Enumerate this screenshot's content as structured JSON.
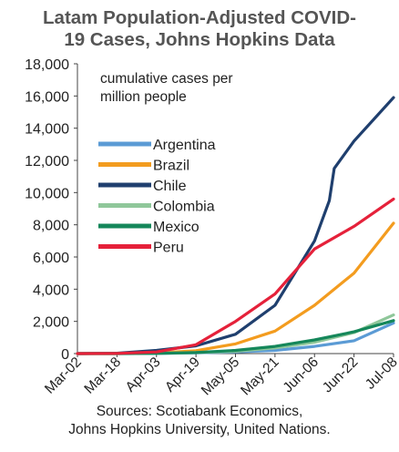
{
  "chart_data": {
    "type": "line",
    "title_lines": [
      "Latam Population-Adjusted  COVID-",
      "19 Cases, Johns Hopkins Data"
    ],
    "annotation_lines": [
      "cumulative cases per",
      "million people"
    ],
    "source_lines": [
      "Sources: Scotiabank Economics,",
      "Johns Hopkins University, United Nations."
    ],
    "x_ticks": [
      "Mar-02",
      "Mar-18",
      "Apr-03",
      "Apr-19",
      "May-05",
      "May-21",
      "Jun-06",
      "Jun-22",
      "Jul-08"
    ],
    "x_range": [
      "Mar-02",
      "Jul-08"
    ],
    "y_ticks": [
      "0",
      "2,000",
      "4,000",
      "6,000",
      "8,000",
      "10,000",
      "12,000",
      "14,000",
      "16,000",
      "18,000"
    ],
    "ylim": [
      0,
      18000
    ],
    "grid": false,
    "legend_placement": "upper-left",
    "series": [
      {
        "name": "Argentina",
        "color": "#5b9bd5",
        "points": [
          [
            "Mar-02",
            0
          ],
          [
            "Mar-18",
            0
          ],
          [
            "Apr-03",
            10
          ],
          [
            "Apr-19",
            50
          ],
          [
            "May-05",
            100
          ],
          [
            "May-21",
            200
          ],
          [
            "Jun-06",
            450
          ],
          [
            "Jun-22",
            800
          ],
          [
            "Jul-08",
            1900
          ]
        ]
      },
      {
        "name": "Brazil",
        "color": "#f39c1f",
        "points": [
          [
            "Mar-02",
            0
          ],
          [
            "Mar-18",
            2
          ],
          [
            "Apr-03",
            40
          ],
          [
            "Apr-19",
            180
          ],
          [
            "May-05",
            600
          ],
          [
            "May-21",
            1400
          ],
          [
            "Jun-06",
            3000
          ],
          [
            "Jun-22",
            5000
          ],
          [
            "Jul-08",
            8100
          ]
        ]
      },
      {
        "name": "Chile",
        "color": "#1f3f6e",
        "points": [
          [
            "Mar-02",
            0
          ],
          [
            "Mar-18",
            20
          ],
          [
            "Apr-03",
            200
          ],
          [
            "Apr-19",
            480
          ],
          [
            "May-05",
            1200
          ],
          [
            "May-21",
            3000
          ],
          [
            "Jun-06",
            7000
          ],
          [
            "Jun-12",
            9500
          ],
          [
            "Jun-14",
            11500
          ],
          [
            "Jun-22",
            13200
          ],
          [
            "Jul-08",
            15900
          ]
        ]
      },
      {
        "name": "Colombia",
        "color": "#8fc79a",
        "points": [
          [
            "Mar-02",
            0
          ],
          [
            "Mar-18",
            3
          ],
          [
            "Apr-03",
            20
          ],
          [
            "Apr-19",
            60
          ],
          [
            "May-05",
            140
          ],
          [
            "May-21",
            350
          ],
          [
            "Jun-06",
            700
          ],
          [
            "Jun-22",
            1300
          ],
          [
            "Jul-08",
            2400
          ]
        ]
      },
      {
        "name": "Mexico",
        "color": "#15875a",
        "points": [
          [
            "Mar-02",
            0
          ],
          [
            "Mar-18",
            2
          ],
          [
            "Apr-03",
            10
          ],
          [
            "Apr-19",
            60
          ],
          [
            "May-05",
            200
          ],
          [
            "May-21",
            450
          ],
          [
            "Jun-06",
            850
          ],
          [
            "Jun-22",
            1350
          ],
          [
            "Jul-08",
            2050
          ]
        ]
      },
      {
        "name": "Peru",
        "color": "#e5213a",
        "points": [
          [
            "Mar-02",
            0
          ],
          [
            "Mar-18",
            10
          ],
          [
            "Apr-03",
            100
          ],
          [
            "Apr-19",
            550
          ],
          [
            "May-05",
            2000
          ],
          [
            "May-21",
            3700
          ],
          [
            "Jun-06",
            6500
          ],
          [
            "Jun-22",
            7900
          ],
          [
            "Jul-08",
            9600
          ]
        ]
      }
    ]
  }
}
